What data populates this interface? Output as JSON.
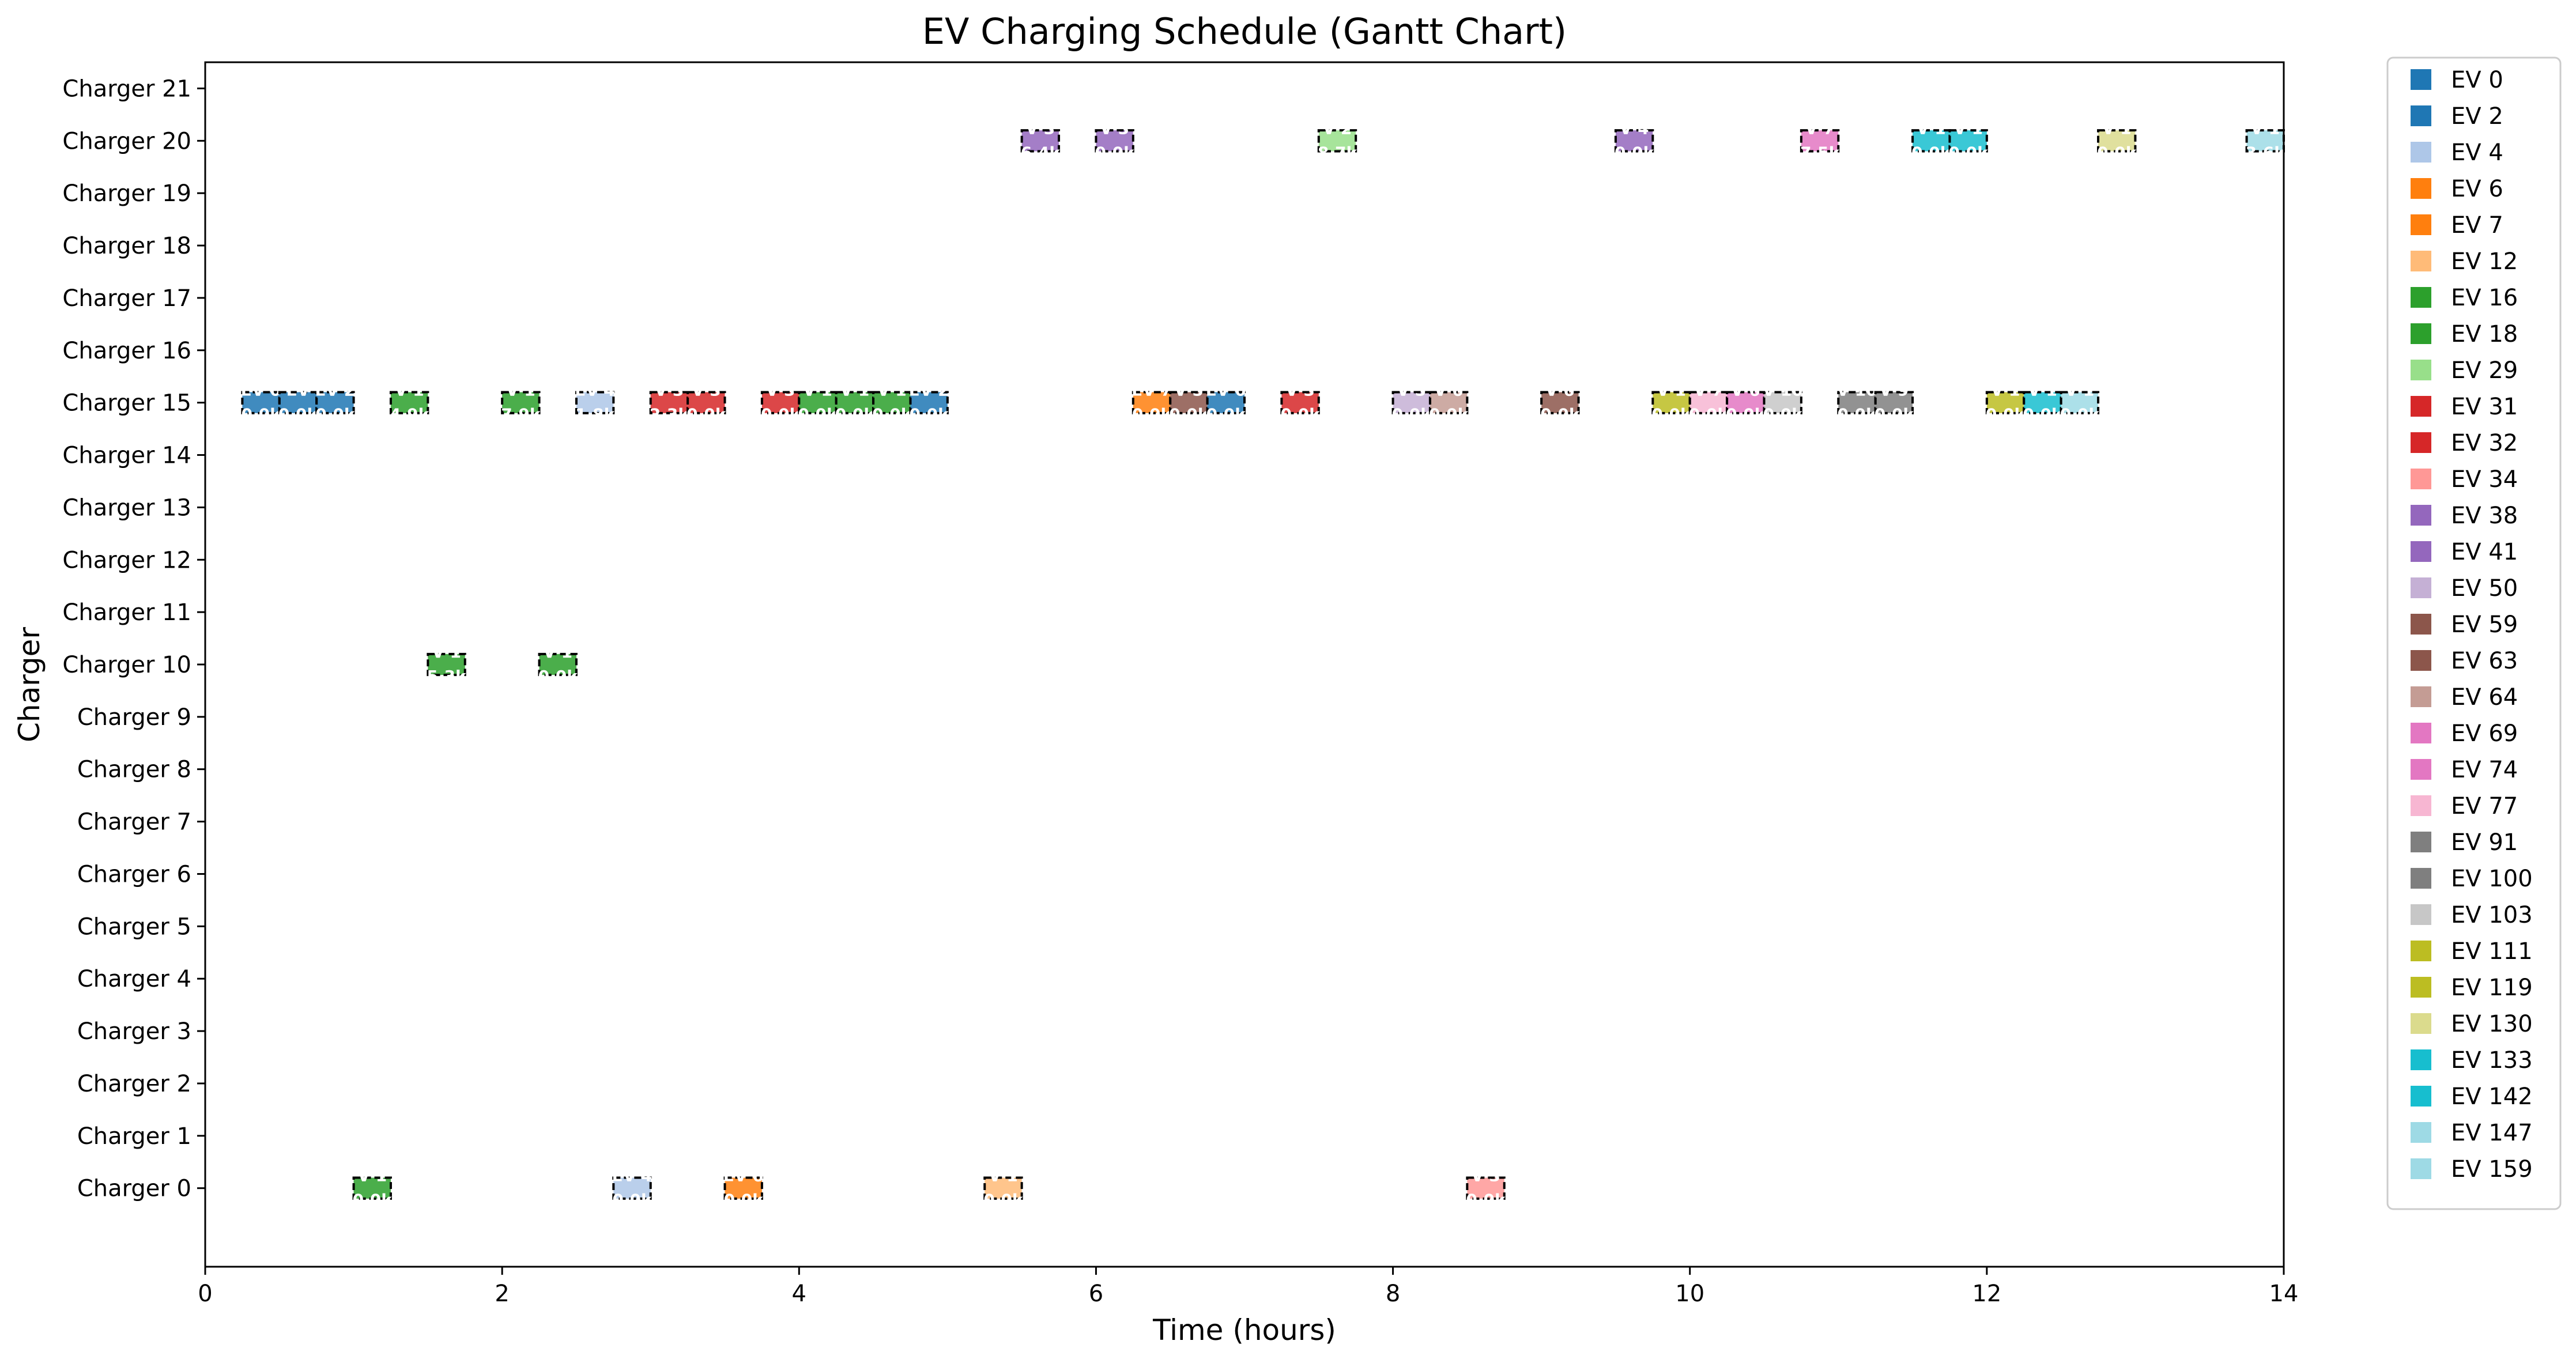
{
  "chart_data": {
    "type": "gantt",
    "title": "EV Charging Schedule (Gantt Chart)",
    "xlabel": "Time (hours)",
    "ylabel": "Charger",
    "xlim": [
      0,
      14
    ],
    "xticks": [
      0,
      2,
      4,
      6,
      8,
      10,
      12,
      14
    ],
    "categories": [
      "Charger 0",
      "Charger 1",
      "Charger 2",
      "Charger 3",
      "Charger 4",
      "Charger 5",
      "Charger 6",
      "Charger 7",
      "Charger 8",
      "Charger 9",
      "Charger 10",
      "Charger 11",
      "Charger 12",
      "Charger 13",
      "Charger 14",
      "Charger 15",
      "Charger 16",
      "Charger 17",
      "Charger 18",
      "Charger 19",
      "Charger 20",
      "Charger 21"
    ],
    "grid": false,
    "legend_position": "outside-right",
    "legend": [
      {
        "label": "EV 0",
        "color": "#1f77b4"
      },
      {
        "label": "EV 2",
        "color": "#1f77b4"
      },
      {
        "label": "EV 4",
        "color": "#aec7e8"
      },
      {
        "label": "EV 6",
        "color": "#ff7f0e"
      },
      {
        "label": "EV 7",
        "color": "#ff7f0e"
      },
      {
        "label": "EV 12",
        "color": "#ffbb78"
      },
      {
        "label": "EV 16",
        "color": "#2ca02c"
      },
      {
        "label": "EV 18",
        "color": "#2ca02c"
      },
      {
        "label": "EV 29",
        "color": "#98df8a"
      },
      {
        "label": "EV 31",
        "color": "#d62728"
      },
      {
        "label": "EV 32",
        "color": "#d62728"
      },
      {
        "label": "EV 34",
        "color": "#ff9896"
      },
      {
        "label": "EV 38",
        "color": "#9467bd"
      },
      {
        "label": "EV 41",
        "color": "#9467bd"
      },
      {
        "label": "EV 50",
        "color": "#c5b0d5"
      },
      {
        "label": "EV 59",
        "color": "#8c564b"
      },
      {
        "label": "EV 63",
        "color": "#8c564b"
      },
      {
        "label": "EV 64",
        "color": "#c49c94"
      },
      {
        "label": "EV 69",
        "color": "#e377c2"
      },
      {
        "label": "EV 74",
        "color": "#e377c2"
      },
      {
        "label": "EV 77",
        "color": "#f7b6d2"
      },
      {
        "label": "EV 91",
        "color": "#7f7f7f"
      },
      {
        "label": "EV 100",
        "color": "#7f7f7f"
      },
      {
        "label": "EV 103",
        "color": "#c7c7c7"
      },
      {
        "label": "EV 111",
        "color": "#bcbd22"
      },
      {
        "label": "EV 119",
        "color": "#bcbd22"
      },
      {
        "label": "EV 130",
        "color": "#dbdb8d"
      },
      {
        "label": "EV 133",
        "color": "#17becf"
      },
      {
        "label": "EV 142",
        "color": "#17becf"
      },
      {
        "label": "EV 147",
        "color": "#9edae5"
      },
      {
        "label": "EV 159",
        "color": "#9edae5"
      }
    ],
    "tasks": [
      {
        "charger": 0,
        "start": 1.0,
        "end": 1.25,
        "label": "V 1",
        "sublabel": "0.0k",
        "color": "#2ca02c"
      },
      {
        "charger": 0,
        "start": 2.75,
        "end": 3.0,
        "label": "EV 4",
        "sublabel": "0.0k",
        "color": "#aec7e8"
      },
      {
        "charger": 0,
        "start": 3.5,
        "end": 3.75,
        "label": "EV 6",
        "sublabel": "0.0k",
        "color": "#ff7f0e"
      },
      {
        "charger": 0,
        "start": 5.25,
        "end": 5.5,
        "label": "V 1",
        "sublabel": "0.0k",
        "color": "#ffbb78"
      },
      {
        "charger": 0,
        "start": 8.5,
        "end": 8.75,
        "label": "V 3",
        "sublabel": "0.0k",
        "color": "#ff9896"
      },
      {
        "charger": 10,
        "start": 1.5,
        "end": 1.75,
        "label": "V 1",
        "sublabel": "5.3k",
        "color": "#2ca02c"
      },
      {
        "charger": 10,
        "start": 2.25,
        "end": 2.5,
        "label": "V 1",
        "sublabel": "0.0k",
        "color": "#2ca02c"
      },
      {
        "charger": 15,
        "start": 0.25,
        "end": 0.5,
        "label": "EV 0",
        "sublabel": "0.0k",
        "color": "#1f77b4"
      },
      {
        "charger": 15,
        "start": 0.5,
        "end": 0.75,
        "label": "EV",
        "sublabel": "0.0k",
        "color": "#1f77b4"
      },
      {
        "charger": 15,
        "start": 0.75,
        "end": 1.0,
        "label": "EV 2",
        "sublabel": "0.0k",
        "color": "#1f77b4"
      },
      {
        "charger": 15,
        "start": 1.25,
        "end": 1.5,
        "label": "V 1",
        "sublabel": "4.9k",
        "color": "#2ca02c"
      },
      {
        "charger": 15,
        "start": 2.0,
        "end": 2.25,
        "label": "V 1",
        "sublabel": "7.9k",
        "color": "#2ca02c"
      },
      {
        "charger": 15,
        "start": 2.5,
        "end": 2.75,
        "label": "EV 4",
        "sublabel": "1.8k",
        "color": "#aec7e8"
      },
      {
        "charger": 15,
        "start": 3.0,
        "end": 3.25,
        "label": "V 3",
        "sublabel": "2.3k",
        "color": "#d62728"
      },
      {
        "charger": 15,
        "start": 3.25,
        "end": 3.5,
        "label": "V 3",
        "sublabel": "0.0k",
        "color": "#d62728"
      },
      {
        "charger": 15,
        "start": 3.75,
        "end": 4.0,
        "label": "V 3",
        "sublabel": "0.0k",
        "color": "#d62728"
      },
      {
        "charger": 15,
        "start": 4.0,
        "end": 4.25,
        "label": "V 1",
        "sublabel": "0.0k",
        "color": "#2ca02c"
      },
      {
        "charger": 15,
        "start": 4.25,
        "end": 4.5,
        "label": "V 1",
        "sublabel": "0.0k",
        "color": "#2ca02c"
      },
      {
        "charger": 15,
        "start": 4.5,
        "end": 4.75,
        "label": "V 1",
        "sublabel": "0.0k",
        "color": "#2ca02c"
      },
      {
        "charger": 15,
        "start": 4.75,
        "end": 5.0,
        "label": "EV 2",
        "sublabel": "0.0k",
        "color": "#1f77b4"
      },
      {
        "charger": 15,
        "start": 6.25,
        "end": 6.5,
        "label": "EV 7",
        "sublabel": "0.0k",
        "color": "#ff7f0e"
      },
      {
        "charger": 15,
        "start": 6.5,
        "end": 6.75,
        "label": "V 5",
        "sublabel": "0.0k",
        "color": "#8c564b"
      },
      {
        "charger": 15,
        "start": 6.75,
        "end": 7.0,
        "label": "EV 0",
        "sublabel": "0.0k",
        "color": "#1f77b4"
      },
      {
        "charger": 15,
        "start": 7.25,
        "end": 7.5,
        "label": "V 3",
        "sublabel": "0.0k",
        "color": "#d62728"
      },
      {
        "charger": 15,
        "start": 8.0,
        "end": 8.25,
        "label": "V 5",
        "sublabel": "0.0k",
        "color": "#c5b0d5"
      },
      {
        "charger": 15,
        "start": 8.25,
        "end": 8.5,
        "label": "V 6",
        "sublabel": "0.0k",
        "color": "#c49c94"
      },
      {
        "charger": 15,
        "start": 9.0,
        "end": 9.25,
        "label": "V 6",
        "sublabel": "0.0k",
        "color": "#8c564b"
      },
      {
        "charger": 15,
        "start": 9.75,
        "end": 10.0,
        "label": "V 1",
        "sublabel": "0.0k",
        "color": "#bcbd22"
      },
      {
        "charger": 15,
        "start": 10.0,
        "end": 10.25,
        "label": "V 7",
        "sublabel": "0.0k",
        "color": "#f7b6d2"
      },
      {
        "charger": 15,
        "start": 10.25,
        "end": 10.5,
        "label": "V 6",
        "sublabel": "0.0k",
        "color": "#e377c2"
      },
      {
        "charger": 15,
        "start": 10.5,
        "end": 10.75,
        "label": "V 10",
        "sublabel": "0.0k",
        "color": "#c7c7c7"
      },
      {
        "charger": 15,
        "start": 11.0,
        "end": 11.25,
        "label": "V 10",
        "sublabel": "0.0k",
        "color": "#7f7f7f"
      },
      {
        "charger": 15,
        "start": 11.25,
        "end": 11.5,
        "label": "V 9",
        "sublabel": "0.0k",
        "color": "#7f7f7f"
      },
      {
        "charger": 15,
        "start": 12.0,
        "end": 12.25,
        "label": "V 1",
        "sublabel": "0.0k",
        "color": "#bcbd22"
      },
      {
        "charger": 15,
        "start": 12.25,
        "end": 12.5,
        "label": "V 1",
        "sublabel": "0.0k",
        "color": "#17becf"
      },
      {
        "charger": 15,
        "start": 12.5,
        "end": 12.75,
        "label": "V 1",
        "sublabel": "0.0k",
        "color": "#9edae5"
      },
      {
        "charger": 20,
        "start": 5.5,
        "end": 5.75,
        "label": "V 3",
        "sublabel": "6.4k",
        "color": "#9467bd"
      },
      {
        "charger": 20,
        "start": 6.0,
        "end": 6.25,
        "label": "V 3",
        "sublabel": "0.0k",
        "color": "#9467bd"
      },
      {
        "charger": 20,
        "start": 7.5,
        "end": 7.75,
        "label": "V 2",
        "sublabel": "8.7k",
        "color": "#98df8a"
      },
      {
        "charger": 20,
        "start": 9.5,
        "end": 9.75,
        "label": "V 4",
        "sublabel": "0.0k",
        "color": "#9467bd"
      },
      {
        "charger": 20,
        "start": 10.75,
        "end": 11.0,
        "label": "V 7",
        "sublabel": "7.5k",
        "color": "#e377c2"
      },
      {
        "charger": 20,
        "start": 11.5,
        "end": 11.75,
        "label": "V 1",
        "sublabel": "0.0k",
        "color": "#17becf"
      },
      {
        "charger": 20,
        "start": 11.75,
        "end": 12.0,
        "label": "V 1",
        "sublabel": "0.0k",
        "color": "#17becf"
      },
      {
        "charger": 20,
        "start": 12.75,
        "end": 13.0,
        "label": "V 1",
        "sublabel": "0.0k",
        "color": "#dbdb8d"
      },
      {
        "charger": 20,
        "start": 13.75,
        "end": 14.0,
        "label": "V 1",
        "sublabel": "3.6k",
        "color": "#9edae5"
      }
    ]
  }
}
